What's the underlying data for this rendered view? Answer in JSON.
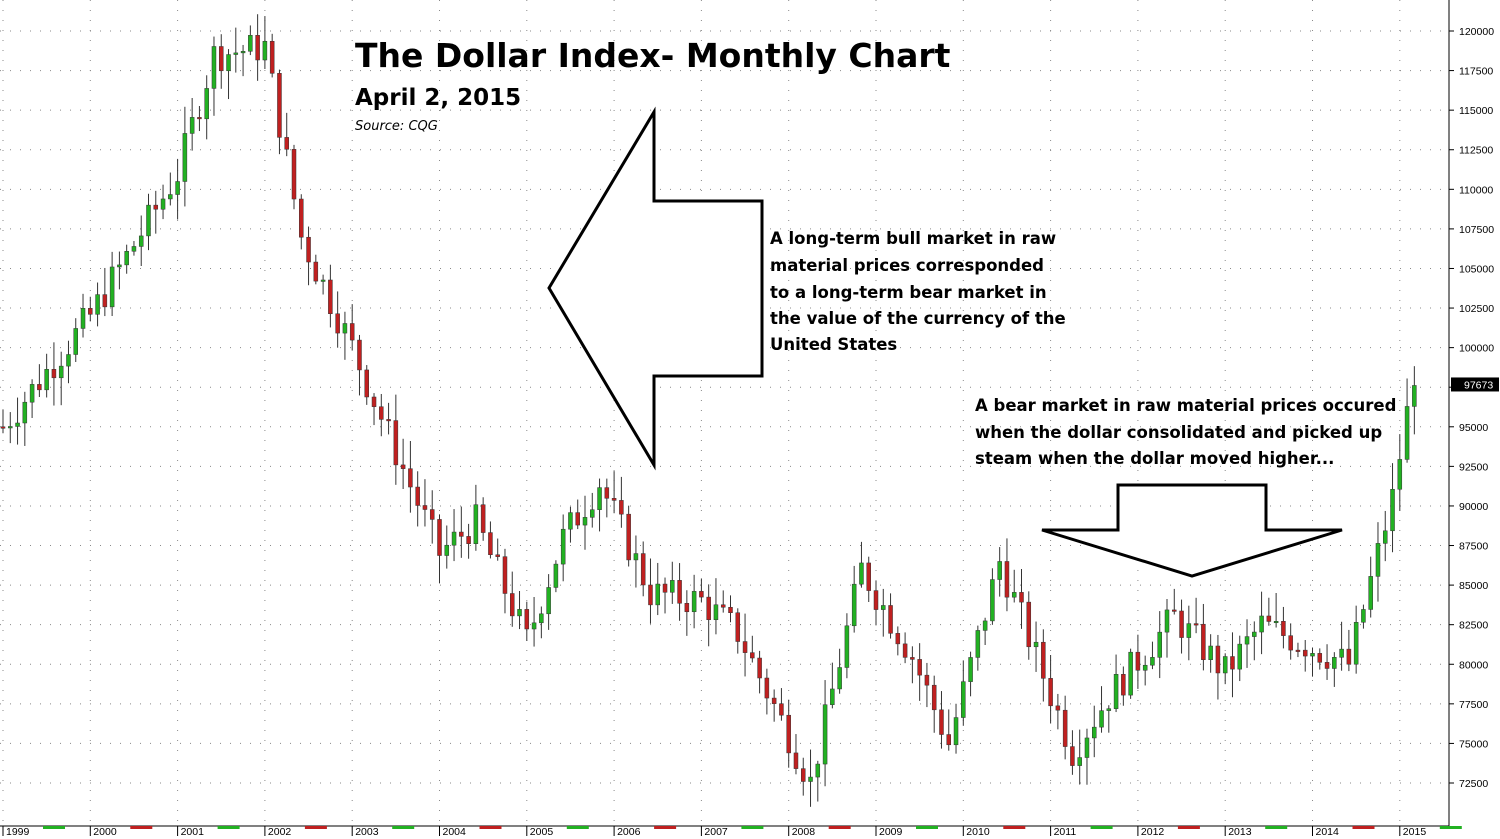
{
  "chart_data": {
    "type": "candlestick",
    "title": "The Dollar Index- Monthly Chart",
    "subtitle": "April 2, 2015",
    "source": "Source: CQG",
    "colors": {
      "up": "#22b122",
      "down": "#c02020",
      "grid": "#8a8a8a",
      "last_price_bg": "#000000",
      "last_price_text": "#ffffff"
    },
    "y_axis": {
      "position": "right",
      "ylim": [
        70700,
        121300
      ],
      "ticks": [
        120000,
        117500,
        115000,
        112500,
        110000,
        107500,
        105000,
        102500,
        100000,
        97500,
        95000,
        92500,
        90000,
        87500,
        85000,
        82500,
        80000,
        77500,
        75000,
        72500
      ],
      "tick_labels": [
        "120000",
        "117500",
        "115000",
        "112500",
        "110000",
        "107500",
        "105000",
        "102500",
        "100000",
        "97500",
        "95000",
        "92500",
        "90000",
        "87500",
        "85000",
        "82500",
        "80000",
        "77500",
        "75000",
        "72500"
      ]
    },
    "x_axis": {
      "ticks": [
        "1999",
        "2000",
        "2001",
        "2002",
        "2003",
        "2004",
        "2005",
        "2006",
        "2007",
        "2008",
        "2009",
        "2010",
        "2011",
        "2012",
        "2013",
        "2014",
        "2015"
      ]
    },
    "last_price": {
      "value": 97673,
      "label": "97673"
    },
    "grid": true,
    "yearly_close_points": [
      {
        "x": "1999-01",
        "y": 95000
      },
      {
        "x": "2000-01",
        "y": 102000
      },
      {
        "x": "2001-01",
        "y": 111000
      },
      {
        "x": "2001-06",
        "y": 118500
      },
      {
        "x": "2002-01",
        "y": 119000
      },
      {
        "x": "2002-06",
        "y": 107000
      },
      {
        "x": "2003-01",
        "y": 100000
      },
      {
        "x": "2003-06",
        "y": 94500
      },
      {
        "x": "2004-01",
        "y": 87000
      },
      {
        "x": "2004-06",
        "y": 89000
      },
      {
        "x": "2005-01",
        "y": 81500
      },
      {
        "x": "2005-06",
        "y": 88000
      },
      {
        "x": "2005-11",
        "y": 91500
      },
      {
        "x": "2006-06",
        "y": 84500
      },
      {
        "x": "2007-01",
        "y": 84000
      },
      {
        "x": "2007-06",
        "y": 82000
      },
      {
        "x": "2008-01",
        "y": 75500
      },
      {
        "x": "2008-04",
        "y": 72500
      },
      {
        "x": "2008-11",
        "y": 86000
      },
      {
        "x": "2009-06",
        "y": 80500
      },
      {
        "x": "2009-11",
        "y": 75000
      },
      {
        "x": "2010-06",
        "y": 86500
      },
      {
        "x": "2011-04",
        "y": 74500
      },
      {
        "x": "2011-09",
        "y": 78000
      },
      {
        "x": "2012-06",
        "y": 83000
      },
      {
        "x": "2013-01",
        "y": 79500
      },
      {
        "x": "2013-06",
        "y": 82500
      },
      {
        "x": "2014-06",
        "y": 80000
      },
      {
        "x": "2014-12",
        "y": 90500
      },
      {
        "x": "2015-03",
        "y": 98500
      }
    ]
  },
  "annotations": {
    "note_left": [
      "A long-term bull market in raw",
      "material prices corresponded",
      "to a long-term bear market in",
      "the value of the currency of the",
      "United States"
    ],
    "note_right": [
      "A bear market in raw material prices occured",
      "when the dollar consolidated and picked up",
      "steam when the dollar moved higher..."
    ]
  }
}
